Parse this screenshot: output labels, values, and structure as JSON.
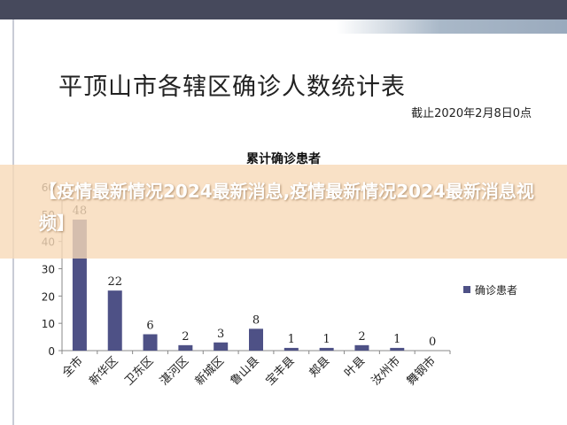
{
  "page": {
    "title": "平顶山市各辖区确诊人数统计表",
    "subtitle": "截止2020年2月8日0点"
  },
  "banner": {
    "text": "【疫情最新情况2024最新消息,疫情最新情况2024最新消息视频】"
  },
  "colors": {
    "bar": "#4e5186",
    "top_bar": "#46495c"
  },
  "chart_data": {
    "type": "bar",
    "title": "累计确诊患者",
    "categories": [
      "全市",
      "新华区",
      "卫东区",
      "湛河区",
      "新城区",
      "鲁山县",
      "宝丰县",
      "郏县",
      "叶县",
      "汝州市",
      "舞钢市"
    ],
    "series": [
      {
        "name": "确诊患者",
        "values": [
          48,
          22,
          6,
          2,
          3,
          8,
          1,
          1,
          2,
          1,
          0
        ]
      }
    ],
    "y_ticks": [
      0,
      10,
      20,
      30,
      40,
      50,
      60
    ],
    "ylim": [
      0,
      60
    ],
    "grid": false,
    "legend": "right"
  }
}
